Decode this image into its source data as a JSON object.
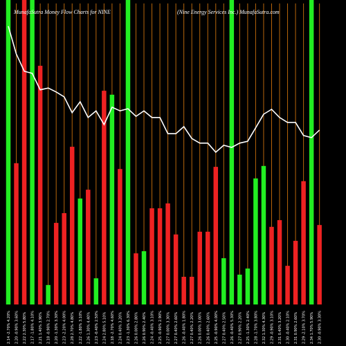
{
  "chart_data": {
    "type": "bar",
    "title": "MunafaSutra  Money Flow  Charts for NINE",
    "subtitle": "(Nine   Energy Services Inc.) MunafaSutra.com",
    "categories": [
      "2.14 -2.70% 4.20%",
      "2.20 -0.90% 3.60%",
      "2.22 2.30% 5.80%",
      "2.17 -1.80% 4.10%",
      "2.21 1.40% 3.90%",
      "2.18 -0.90% 2.70%",
      "2.20 -1.30% 3.30%",
      "2.23 -2.20% 4.00%",
      "2.28 2.70% 4.80%",
      "2.22 -1.80% 3.10%",
      "2.26 1.30% 4.40%",
      "2.23 -0.40% 2.50%",
      "2.24 2.80% 5.10%",
      "2.18 -2.70% 4.60%",
      "2.24 0.40% 3.20%",
      "2.23 -1.30% 6.30%",
      "2.26 0.00% 2.80%",
      "2.26 0.90% 2.40%",
      "2.24 -0.40% 3.10%",
      "2.25 -0.90% 2.90%",
      "2.27 0.00% 3.30%",
      "2.27 0.40% 2.60%",
      "2.26 -0.40% 1.80%",
      "2.27 0.40% 2.20%",
      "2.26 0.00% 3.00%",
      "2.26 0.40% 2.60%",
      "2.25 -0.90% 4.00%",
      "2.27 0.40% 2.50%",
      "2.26 -0.40% 5.30%",
      "2.27 0.90% 2.20%",
      "2.25 -1.30% 2.40%",
      "2.28 -1.70% 3.80%",
      "2.32 1.30% 4.30%",
      "2.29 -0.90% 3.10%",
      "2.31 0.40% 3.20%",
      "2.30 -0.40% 2.10%",
      "2.31 0.90% 2.60%",
      "2.29 -2.10% 3.70%",
      "2.34 1.70% 5.90%",
      "2.30 -0.90% 3.30%"
    ],
    "values": [
      100,
      46.4,
      100,
      100,
      78.4,
      6.4,
      26.8,
      30,
      51.8,
      34.8,
      37.7,
      8.6,
      70.2,
      68.9,
      44.5,
      100,
      16.8,
      17.5,
      31.6,
      31.6,
      33.2,
      23,
      9.1,
      9.1,
      23.9,
      23.9,
      45.2,
      15.2,
      100,
      9.8,
      11.8,
      41.4,
      45.5,
      25.5,
      27.7,
      12.7,
      20.9,
      40.5,
      100,
      26.1
    ],
    "bar_colors": [
      "#22ee22",
      "#ee2222",
      "#ee2222",
      "#22ee22",
      "#ee2222",
      "#22ee22",
      "#ee2222",
      "#ee2222",
      "#ee2222",
      "#22ee22",
      "#ee2222",
      "#22ee22",
      "#ee2222",
      "#22ee22",
      "#ee2222",
      "#22ee22",
      "#ee2222",
      "#22ee22",
      "#ee2222",
      "#ee2222",
      "#ee2222",
      "#ee2222",
      "#ee2222",
      "#ee2222",
      "#ee2222",
      "#ee2222",
      "#ee2222",
      "#22ee22",
      "#22ee22",
      "#22ee22",
      "#22ee22",
      "#22ee22",
      "#22ee22",
      "#ee2222",
      "#ee2222",
      "#ee2222",
      "#ee2222",
      "#ee2222",
      "#22ee22",
      "#ee2222"
    ],
    "line": {
      "color": "#ffffff",
      "values": [
        91.4,
        82.3,
        76.6,
        75.9,
        70.5,
        71.1,
        69.8,
        68.2,
        63,
        66.6,
        61.4,
        63.6,
        59.1,
        64.8,
        63.6,
        64.3,
        61.8,
        63.6,
        61.4,
        61.4,
        56.1,
        56.1,
        58.4,
        54.5,
        53,
        53,
        50,
        52.3,
        51.6,
        53,
        53.6,
        58,
        62.5,
        64.1,
        61.4,
        59.8,
        59.8,
        55.5,
        54.8,
        57.3
      ]
    },
    "guide_color": "#b8660b",
    "ylim": [
      0,
      100
    ]
  }
}
